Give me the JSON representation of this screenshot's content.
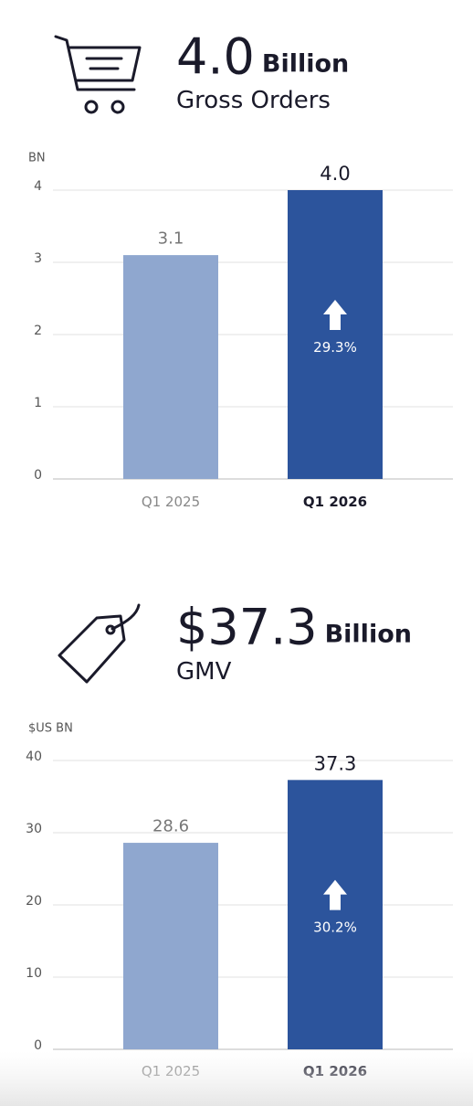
{
  "chart_data": [
    {
      "type": "bar",
      "headline_value": "4.0",
      "headline_unit": "Billion",
      "title": "Gross Orders",
      "y_label": "BN",
      "categories": [
        "Q1 2025",
        "Q1 2026"
      ],
      "values": [
        3.1,
        4.0
      ],
      "value_labels": [
        "3.1",
        "4.0"
      ],
      "colors": [
        "#8fa7cf",
        "#2c549c"
      ],
      "growth_label": "29.3%",
      "ylim": [
        0,
        4
      ],
      "yticks": [
        0,
        1,
        2,
        3,
        4
      ],
      "grid": true
    },
    {
      "type": "bar",
      "headline_value": "$37.3",
      "headline_unit": "Billion",
      "title": "GMV",
      "y_label": "$US BN",
      "categories": [
        "Q1 2025",
        "Q1 2026"
      ],
      "values": [
        28.6,
        37.3
      ],
      "value_labels": [
        "28.6",
        "37.3"
      ],
      "colors": [
        "#8fa7cf",
        "#2c549c"
      ],
      "growth_label": "30.2%",
      "ylim": [
        0,
        40
      ],
      "yticks": [
        0,
        10,
        20,
        30,
        40
      ],
      "grid": true
    }
  ]
}
